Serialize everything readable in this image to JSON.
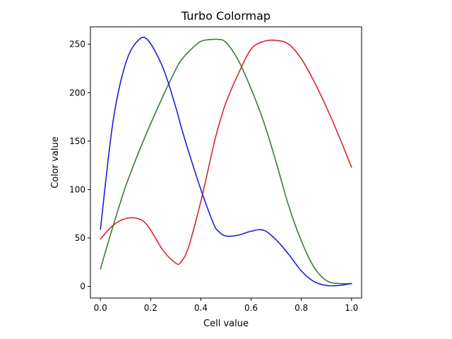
{
  "chart_data": {
    "type": "line",
    "title": "Turbo Colormap",
    "xlabel": "Cell value",
    "ylabel": "Color value",
    "xlim": [
      -0.04,
      1.04
    ],
    "ylim": [
      -12,
      268
    ],
    "xticks": [
      0.0,
      0.2,
      0.4,
      0.6,
      0.8,
      1.0
    ],
    "xtick_labels": [
      "0.0",
      "0.2",
      "0.4",
      "0.6",
      "0.8",
      "1.0"
    ],
    "yticks": [
      0,
      50,
      100,
      150,
      200,
      250
    ],
    "ytick_labels": [
      "0",
      "50",
      "100",
      "150",
      "200",
      "250"
    ],
    "grid": false,
    "legend": "none",
    "x": [
      0.0,
      0.05,
      0.1,
      0.15,
      0.19,
      0.25,
      0.3,
      0.32,
      0.35,
      0.4,
      0.45,
      0.47,
      0.5,
      0.55,
      0.6,
      0.65,
      0.7,
      0.75,
      0.8,
      0.85,
      0.9,
      0.95,
      1.0
    ],
    "series": [
      {
        "color": "#d62728",
        "values": [
          49,
          63,
          70,
          70,
          62,
          37,
          24,
          25,
          40,
          88,
          145,
          165,
          190,
          220,
          245,
          253,
          254,
          250,
          235,
          212,
          185,
          155,
          123
        ]
      },
      {
        "color": "#3b7a3b",
        "values": [
          18,
          62,
          103,
          137,
          162,
          197,
          224,
          233,
          242,
          253,
          255,
          255,
          252,
          233,
          204,
          170,
          128,
          83,
          47,
          20,
          6,
          3,
          3
        ]
      },
      {
        "color": "#1f1fcf",
        "values": [
          59,
          170,
          230,
          254,
          254,
          225,
          185,
          166,
          140,
          100,
          65,
          57,
          52,
          53,
          57,
          58,
          48,
          33,
          16,
          5,
          1,
          1,
          3
        ]
      }
    ]
  }
}
